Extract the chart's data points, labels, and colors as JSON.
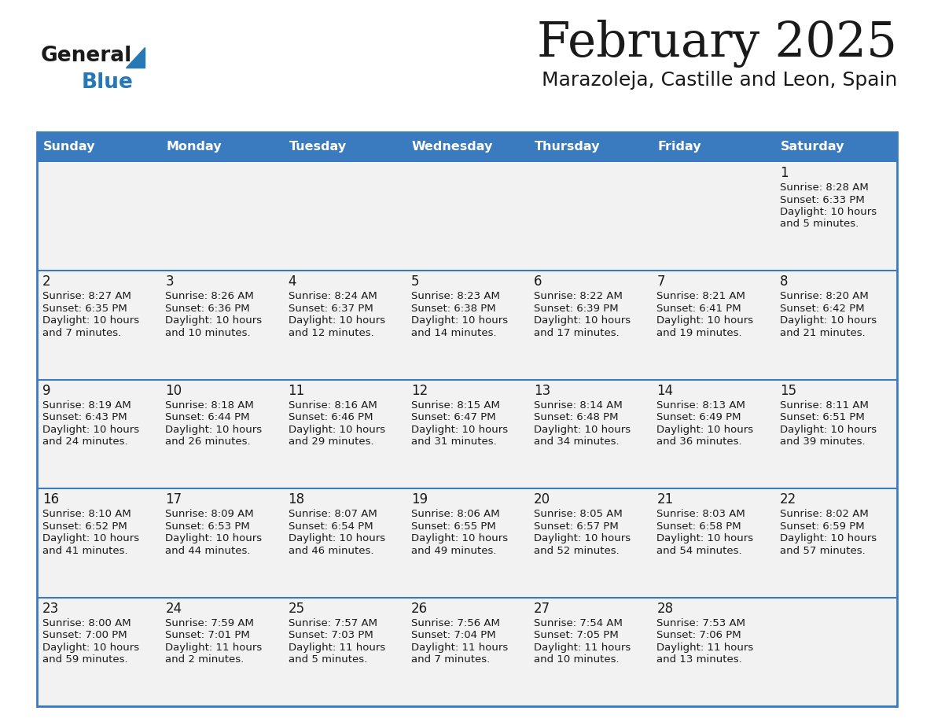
{
  "title": "February 2025",
  "subtitle": "Marazoleja, Castille and Leon, Spain",
  "header_color": "#3a7bbf",
  "header_text_color": "#ffffff",
  "cell_bg_even": "#f2f2f2",
  "cell_bg_odd": "#ffffff",
  "border_color": "#3a7bbf",
  "text_color": "#222222",
  "days_of_week": [
    "Sunday",
    "Monday",
    "Tuesday",
    "Wednesday",
    "Thursday",
    "Friday",
    "Saturday"
  ],
  "calendar_data": [
    [
      null,
      null,
      null,
      null,
      null,
      null,
      {
        "day": 1,
        "sunrise": "8:28 AM",
        "sunset": "6:33 PM",
        "daylight_line1": "Daylight: 10 hours",
        "daylight_line2": "and 5 minutes."
      }
    ],
    [
      {
        "day": 2,
        "sunrise": "8:27 AM",
        "sunset": "6:35 PM",
        "daylight_line1": "Daylight: 10 hours",
        "daylight_line2": "and 7 minutes."
      },
      {
        "day": 3,
        "sunrise": "8:26 AM",
        "sunset": "6:36 PM",
        "daylight_line1": "Daylight: 10 hours",
        "daylight_line2": "and 10 minutes."
      },
      {
        "day": 4,
        "sunrise": "8:24 AM",
        "sunset": "6:37 PM",
        "daylight_line1": "Daylight: 10 hours",
        "daylight_line2": "and 12 minutes."
      },
      {
        "day": 5,
        "sunrise": "8:23 AM",
        "sunset": "6:38 PM",
        "daylight_line1": "Daylight: 10 hours",
        "daylight_line2": "and 14 minutes."
      },
      {
        "day": 6,
        "sunrise": "8:22 AM",
        "sunset": "6:39 PM",
        "daylight_line1": "Daylight: 10 hours",
        "daylight_line2": "and 17 minutes."
      },
      {
        "day": 7,
        "sunrise": "8:21 AM",
        "sunset": "6:41 PM",
        "daylight_line1": "Daylight: 10 hours",
        "daylight_line2": "and 19 minutes."
      },
      {
        "day": 8,
        "sunrise": "8:20 AM",
        "sunset": "6:42 PM",
        "daylight_line1": "Daylight: 10 hours",
        "daylight_line2": "and 21 minutes."
      }
    ],
    [
      {
        "day": 9,
        "sunrise": "8:19 AM",
        "sunset": "6:43 PM",
        "daylight_line1": "Daylight: 10 hours",
        "daylight_line2": "and 24 minutes."
      },
      {
        "day": 10,
        "sunrise": "8:18 AM",
        "sunset": "6:44 PM",
        "daylight_line1": "Daylight: 10 hours",
        "daylight_line2": "and 26 minutes."
      },
      {
        "day": 11,
        "sunrise": "8:16 AM",
        "sunset": "6:46 PM",
        "daylight_line1": "Daylight: 10 hours",
        "daylight_line2": "and 29 minutes."
      },
      {
        "day": 12,
        "sunrise": "8:15 AM",
        "sunset": "6:47 PM",
        "daylight_line1": "Daylight: 10 hours",
        "daylight_line2": "and 31 minutes."
      },
      {
        "day": 13,
        "sunrise": "8:14 AM",
        "sunset": "6:48 PM",
        "daylight_line1": "Daylight: 10 hours",
        "daylight_line2": "and 34 minutes."
      },
      {
        "day": 14,
        "sunrise": "8:13 AM",
        "sunset": "6:49 PM",
        "daylight_line1": "Daylight: 10 hours",
        "daylight_line2": "and 36 minutes."
      },
      {
        "day": 15,
        "sunrise": "8:11 AM",
        "sunset": "6:51 PM",
        "daylight_line1": "Daylight: 10 hours",
        "daylight_line2": "and 39 minutes."
      }
    ],
    [
      {
        "day": 16,
        "sunrise": "8:10 AM",
        "sunset": "6:52 PM",
        "daylight_line1": "Daylight: 10 hours",
        "daylight_line2": "and 41 minutes."
      },
      {
        "day": 17,
        "sunrise": "8:09 AM",
        "sunset": "6:53 PM",
        "daylight_line1": "Daylight: 10 hours",
        "daylight_line2": "and 44 minutes."
      },
      {
        "day": 18,
        "sunrise": "8:07 AM",
        "sunset": "6:54 PM",
        "daylight_line1": "Daylight: 10 hours",
        "daylight_line2": "and 46 minutes."
      },
      {
        "day": 19,
        "sunrise": "8:06 AM",
        "sunset": "6:55 PM",
        "daylight_line1": "Daylight: 10 hours",
        "daylight_line2": "and 49 minutes."
      },
      {
        "day": 20,
        "sunrise": "8:05 AM",
        "sunset": "6:57 PM",
        "daylight_line1": "Daylight: 10 hours",
        "daylight_line2": "and 52 minutes."
      },
      {
        "day": 21,
        "sunrise": "8:03 AM",
        "sunset": "6:58 PM",
        "daylight_line1": "Daylight: 10 hours",
        "daylight_line2": "and 54 minutes."
      },
      {
        "day": 22,
        "sunrise": "8:02 AM",
        "sunset": "6:59 PM",
        "daylight_line1": "Daylight: 10 hours",
        "daylight_line2": "and 57 minutes."
      }
    ],
    [
      {
        "day": 23,
        "sunrise": "8:00 AM",
        "sunset": "7:00 PM",
        "daylight_line1": "Daylight: 10 hours",
        "daylight_line2": "and 59 minutes."
      },
      {
        "day": 24,
        "sunrise": "7:59 AM",
        "sunset": "7:01 PM",
        "daylight_line1": "Daylight: 11 hours",
        "daylight_line2": "and 2 minutes."
      },
      {
        "day": 25,
        "sunrise": "7:57 AM",
        "sunset": "7:03 PM",
        "daylight_line1": "Daylight: 11 hours",
        "daylight_line2": "and 5 minutes."
      },
      {
        "day": 26,
        "sunrise": "7:56 AM",
        "sunset": "7:04 PM",
        "daylight_line1": "Daylight: 11 hours",
        "daylight_line2": "and 7 minutes."
      },
      {
        "day": 27,
        "sunrise": "7:54 AM",
        "sunset": "7:05 PM",
        "daylight_line1": "Daylight: 11 hours",
        "daylight_line2": "and 10 minutes."
      },
      {
        "day": 28,
        "sunrise": "7:53 AM",
        "sunset": "7:06 PM",
        "daylight_line1": "Daylight: 11 hours",
        "daylight_line2": "and 13 minutes."
      },
      null
    ]
  ]
}
